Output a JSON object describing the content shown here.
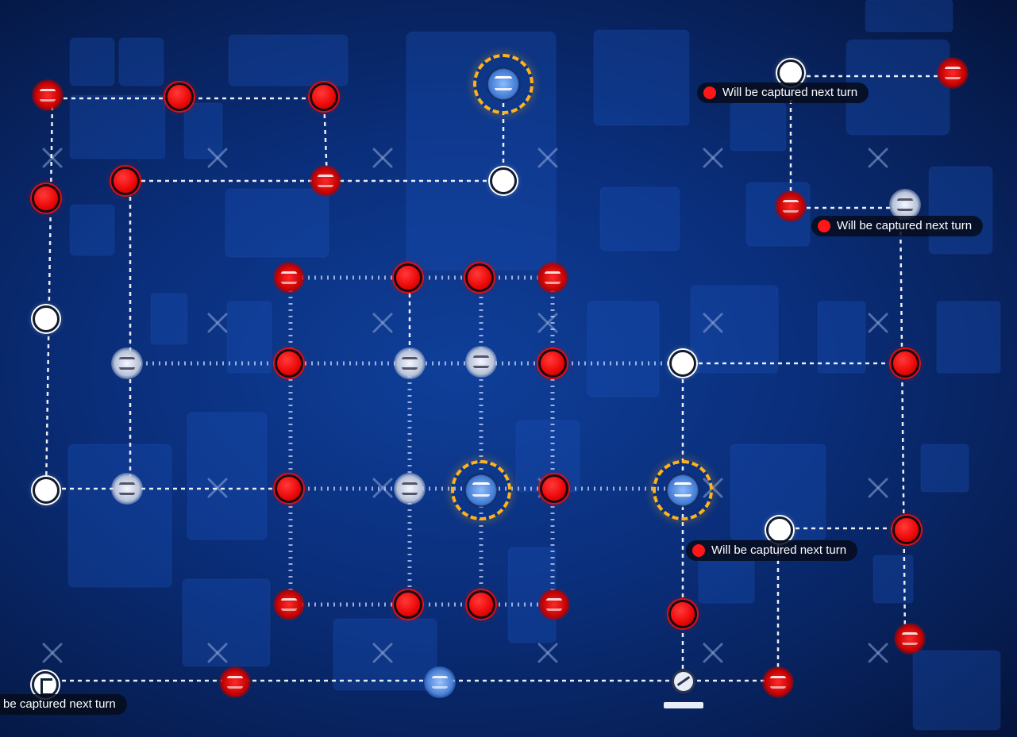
{
  "game": {
    "tooltips": [
      {
        "text": "Will be captured next turn"
      },
      {
        "text": "Will be captured next turn"
      },
      {
        "text": "Will be captured next turn"
      },
      {
        "text": "be captured next turn"
      }
    ],
    "node_states": [
      "enemy-red",
      "neutral-white",
      "enemy-facility",
      "ally-hq"
    ],
    "colors": {
      "enemy": "#ee0a0a",
      "neutral": "#ffffff",
      "hq_ring": "#ffb21a",
      "background": "#0a2e7a",
      "tooltip_bg": "#060c1c"
    },
    "icons": [
      "hq-icon",
      "facility-icon",
      "start-node-icon",
      "blocked-node-icon",
      "disabled-x-icon"
    ]
  }
}
